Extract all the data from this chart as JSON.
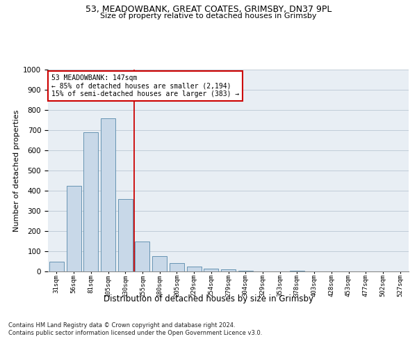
{
  "title_line1": "53, MEADOWBANK, GREAT COATES, GRIMSBY, DN37 9PL",
  "title_line2": "Size of property relative to detached houses in Grimsby",
  "xlabel": "Distribution of detached houses by size in Grimsby",
  "ylabel": "Number of detached properties",
  "bar_values": [
    50,
    425,
    690,
    760,
    360,
    150,
    75,
    40,
    25,
    15,
    10,
    5,
    0,
    0,
    5,
    0,
    0,
    0
  ],
  "bar_labels": [
    "31sqm",
    "56sqm",
    "81sqm",
    "105sqm",
    "130sqm",
    "155sqm",
    "180sqm",
    "205sqm",
    "229sqm",
    "254sqm",
    "279sqm",
    "304sqm",
    "329sqm",
    "353sqm",
    "378sqm",
    "403sqm",
    "428sqm",
    "453sqm"
  ],
  "all_xtick_labels": [
    "31sqm",
    "56sqm",
    "81sqm",
    "105sqm",
    "130sqm",
    "155sqm",
    "180sqm",
    "205sqm",
    "229sqm",
    "254sqm",
    "279sqm",
    "304sqm",
    "329sqm",
    "353sqm",
    "378sqm",
    "403sqm",
    "428sqm",
    "453sqm",
    "477sqm",
    "502sqm",
    "527sqm"
  ],
  "bar_color": "#c8d8e8",
  "bar_edge_color": "#5588aa",
  "vline_color": "#cc0000",
  "annotation_line1": "53 MEADOWBANK: 147sqm",
  "annotation_line2": "← 85% of detached houses are smaller (2,194)",
  "annotation_line3": "15% of semi-detached houses are larger (383) →",
  "annotation_box_color": "#cc0000",
  "ylim": [
    0,
    1000
  ],
  "yticks": [
    0,
    100,
    200,
    300,
    400,
    500,
    600,
    700,
    800,
    900,
    1000
  ],
  "grid_color": "#c0ccd8",
  "background_color": "#e8eef4",
  "footer_line1": "Contains HM Land Registry data © Crown copyright and database right 2024.",
  "footer_line2": "Contains public sector information licensed under the Open Government Licence v3.0.",
  "title_fontsize": 9,
  "subtitle_fontsize": 8,
  "annotation_fontsize": 7,
  "footer_fontsize": 6,
  "ylabel_fontsize": 8,
  "xlabel_fontsize": 8.5,
  "ytick_fontsize": 7.5,
  "xtick_fontsize": 6.5
}
